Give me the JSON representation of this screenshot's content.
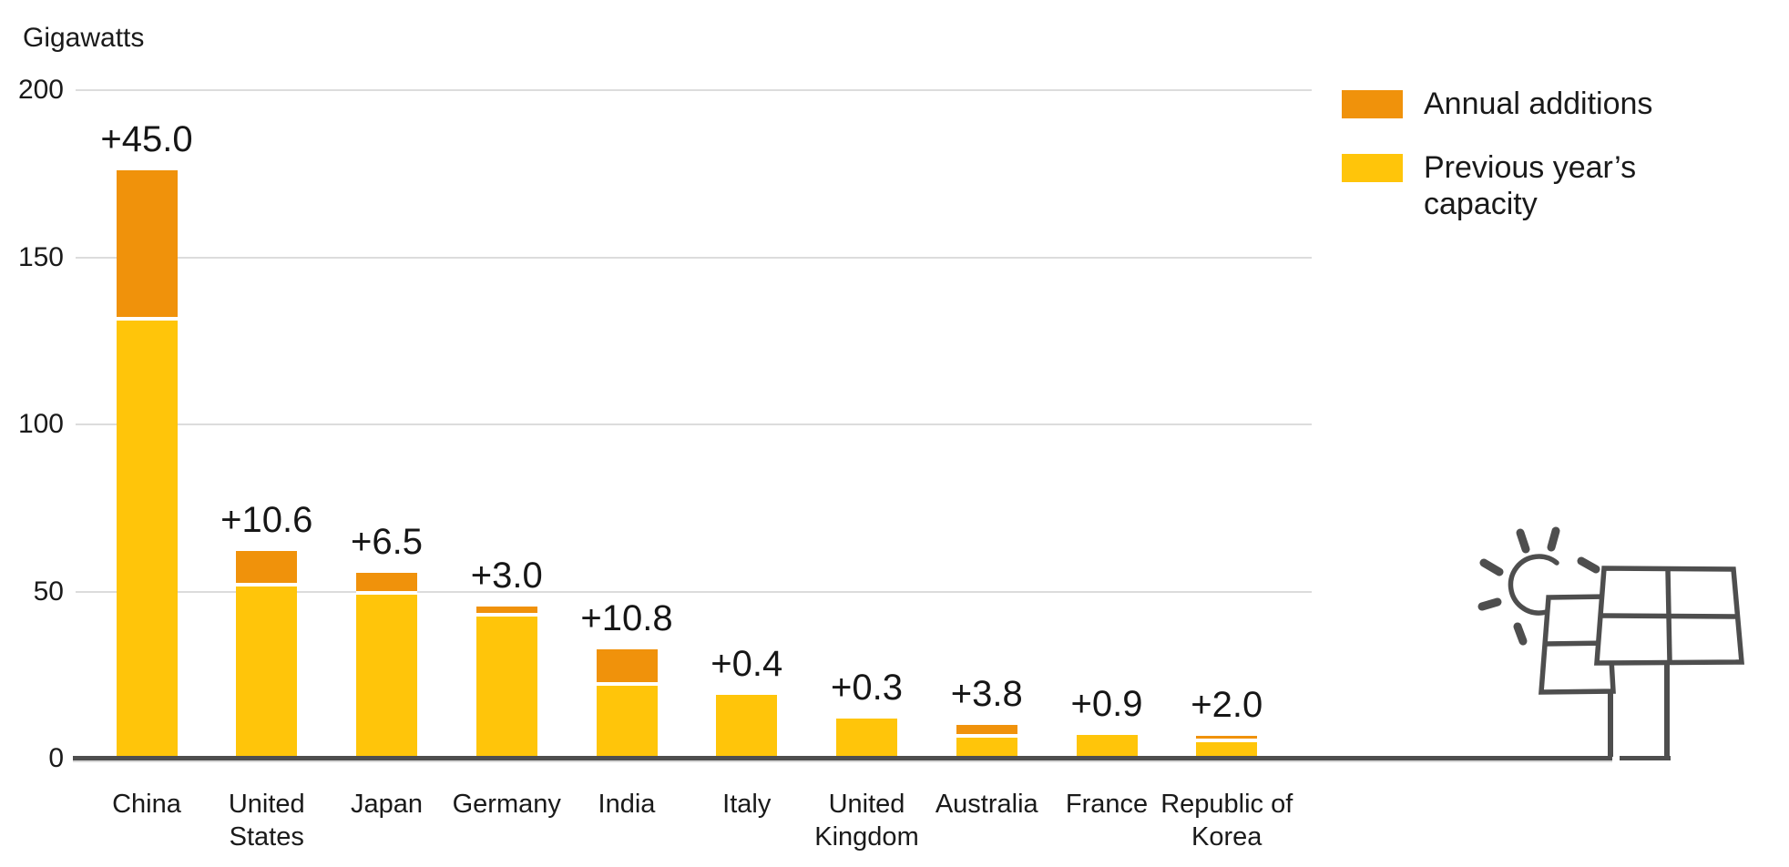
{
  "y_axis_title": "Gigawatts",
  "chart_data": {
    "type": "bar",
    "stacked": true,
    "title": "",
    "ylabel": "Gigawatts",
    "categories": [
      "China",
      "United States",
      "Japan",
      "Germany",
      "India",
      "Italy",
      "United Kingdom",
      "Australia",
      "France",
      "Republic of Korea"
    ],
    "series": [
      {
        "name": "Previous year’s capacity",
        "color": "#FFC50A",
        "values": [
          131.1,
          51.5,
          49.0,
          42.4,
          21.9,
          19.1,
          12.0,
          6.4,
          7.2,
          5.0
        ]
      },
      {
        "name": "Annual additions",
        "color": "#F0920B",
        "values": [
          45.0,
          10.6,
          6.5,
          3.0,
          10.8,
          0.4,
          0.3,
          3.8,
          0.9,
          2.0
        ]
      }
    ],
    "totals": [
      176.1,
      62.1,
      55.5,
      45.4,
      32.7,
      19.5,
      12.3,
      10.2,
      8.1,
      7.0
    ],
    "bar_labels": [
      "+45.0",
      "+10.6",
      "+6.5",
      "+3.0",
      "+10.8",
      "+0.4",
      "+0.3",
      "+3.8",
      "+0.9",
      "+2.0"
    ],
    "y_axis": {
      "ticks": [
        0,
        50,
        100,
        150,
        200
      ],
      "ylim": [
        0,
        200
      ]
    },
    "grid": true,
    "legend_position": "top-right"
  },
  "legend": {
    "items": [
      {
        "label": "Annual additions",
        "color": "#F0920B"
      },
      {
        "label": "Previous year’s capacity",
        "color": "#FFC50A"
      }
    ]
  },
  "illustration": {
    "name": "solar-panel-with-sun"
  },
  "colors": {
    "yellow": "#FFC50A",
    "orange": "#F0920B",
    "axis": "#4E4E4E",
    "grid": "#DCDCDC",
    "text": "#1A1A1A"
  }
}
